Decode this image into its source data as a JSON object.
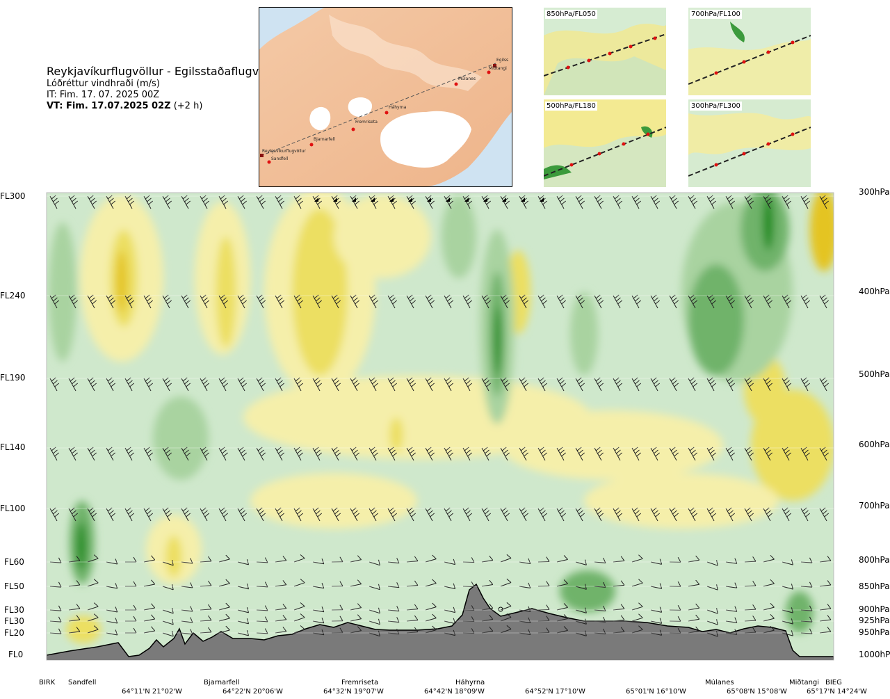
{
  "header": {
    "route": "Reykjavíkurflugvöllur - Egilsstaðaflugvöllur",
    "variable": "Lóðréttur vindhraði (m/s)",
    "it": "IT: Fim. 17. 07. 2025 00Z",
    "vt_bold": "VT: Fim. 17.07.2025 02Z",
    "vt_rest": " (+2 h)"
  },
  "map": {
    "waypoints": [
      {
        "name": "Reykjavíkurflugvöllur"
      },
      {
        "name": "Sandfell"
      },
      {
        "name": "Bjarnarfell"
      },
      {
        "name": "Fremriseta"
      },
      {
        "name": "Háhyrna"
      },
      {
        "name": "Múlanes"
      },
      {
        "name": "Miðtangi"
      },
      {
        "name": "Egilss"
      }
    ]
  },
  "panels": [
    {
      "label": "850hPa/FL050"
    },
    {
      "label": "700hPa/FL100"
    },
    {
      "label": "500hPa/FL180"
    },
    {
      "label": "300hPa/FL300"
    }
  ],
  "chart_data": {
    "type": "heatmap",
    "title": "Lóðréttur vindhraði (m/s)",
    "left_axis_labels": [
      "FL300",
      "FL240",
      "FL190",
      "FL140",
      "FL100",
      "FL60",
      "FL50",
      "FL30",
      "FL30",
      "FL20",
      "FL0"
    ],
    "right_axis_labels": [
      "300hPa",
      "400hPa",
      "500hPa",
      "600hPa",
      "700hPa",
      "800hPa",
      "850hPa",
      "900hPa",
      "925hPa",
      "950hPa",
      "1000hPa"
    ],
    "pressure_levels_hPa": [
      300,
      400,
      500,
      600,
      700,
      800,
      850,
      900,
      925,
      950,
      1000
    ],
    "x_sites": [
      "BIRK",
      "Sandfell",
      "Bjarnarfell",
      "Fremriseta",
      "Háhyrna",
      "Miðtangi",
      "Múlanes",
      "BIEG"
    ],
    "x_coords": [
      "64°11'N 21°02'W",
      "64°22'N 20°06'W",
      "64°32'N 19°07'W",
      "64°42'N 18°09'W",
      "64°52'N 17°10'W",
      "65°01'N 16°10'W",
      "65°08'N 15°08'W",
      "65°17'N 14°24'W"
    ],
    "colors": {
      "strong_up": "#1e8c1e",
      "up": "#6fb36a",
      "weak_up": "#a9d3a0",
      "slight_up": "#cfe8cc",
      "neutral": "#f6fbe6",
      "slight_down": "#f5efaa",
      "down": "#ecdf62",
      "strong_down": "#e4c422",
      "terrain": "#7a7a7a"
    },
    "grid": true
  }
}
